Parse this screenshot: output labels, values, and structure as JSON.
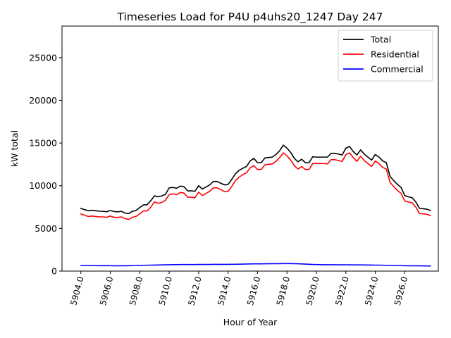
{
  "chart_data": {
    "type": "line",
    "title": "Timeseries Load for P4U p4uhs20_1247  Day 247",
    "xlabel": "Hour of Year",
    "ylabel": "kW total",
    "xlim": [
      5902.72,
      5928.28
    ],
    "ylim": [
      0,
      28700
    ],
    "x_ticks": [
      5904,
      5906,
      5908,
      5910,
      5912,
      5914,
      5916,
      5918,
      5920,
      5922,
      5924,
      5926
    ],
    "x_tick_labels": [
      "5904.0",
      "5906.0",
      "5908.0",
      "5910.0",
      "5912.0",
      "5914.0",
      "5916.0",
      "5918.0",
      "5920.0",
      "5922.0",
      "5924.0",
      "5926.0"
    ],
    "y_ticks": [
      0,
      5000,
      10000,
      15000,
      20000,
      25000
    ],
    "y_tick_labels": [
      "0",
      "5000",
      "10000",
      "15000",
      "20000",
      "25000"
    ],
    "legend_position": "top-right",
    "x_start": 5904.0,
    "x_step": 0.25,
    "series": [
      {
        "name": "Total",
        "color": "#000000",
        "values": [
          7350,
          7200,
          7080,
          7130,
          7080,
          7020,
          7000,
          6950,
          7100,
          6980,
          6940,
          7000,
          6800,
          6750,
          7000,
          7100,
          7450,
          7750,
          7780,
          8250,
          8820,
          8700,
          8800,
          9000,
          9750,
          9800,
          9700,
          9950,
          9900,
          9400,
          9400,
          9350,
          10000,
          9600,
          9850,
          10100,
          10500,
          10500,
          10300,
          10100,
          10150,
          10750,
          11400,
          11800,
          12050,
          12250,
          12900,
          13200,
          12700,
          12700,
          13250,
          13300,
          13350,
          13650,
          14100,
          14750,
          14400,
          13900,
          13200,
          12800,
          13100,
          12700,
          12700,
          13400,
          13350,
          13350,
          13350,
          13350,
          13800,
          13800,
          13700,
          13600,
          14400,
          14600,
          14000,
          13600,
          14200,
          13700,
          13350,
          13000,
          13650,
          13350,
          12900,
          12700,
          11100,
          10600,
          10150,
          9800,
          8850,
          8700,
          8600,
          8100,
          7350,
          7300,
          7250,
          7100
        ]
      },
      {
        "name": "Residential",
        "color": "#ff0000",
        "values": [
          6700,
          6550,
          6400,
          6450,
          6400,
          6350,
          6350,
          6300,
          6450,
          6300,
          6280,
          6350,
          6150,
          6050,
          6300,
          6400,
          6700,
          7050,
          7050,
          7500,
          8100,
          7950,
          8050,
          8300,
          8950,
          9050,
          8950,
          9200,
          9150,
          8650,
          8650,
          8600,
          9250,
          8850,
          9100,
          9350,
          9750,
          9750,
          9550,
          9300,
          9350,
          9900,
          10600,
          11000,
          11300,
          11500,
          12100,
          12350,
          11900,
          11900,
          12450,
          12500,
          12550,
          12850,
          13300,
          13850,
          13500,
          13000,
          12350,
          11950,
          12250,
          11900,
          11900,
          12600,
          12600,
          12600,
          12600,
          12550,
          13050,
          13050,
          12950,
          12850,
          13650,
          13850,
          13300,
          12850,
          13450,
          12950,
          12600,
          12250,
          12900,
          12600,
          12150,
          11950,
          10400,
          9900,
          9450,
          9100,
          8200,
          8100,
          8000,
          7500,
          6750,
          6700,
          6650,
          6500
        ]
      },
      {
        "name": "Commercial",
        "color": "#0000ff",
        "values": [
          650,
          650,
          650,
          640,
          640,
          630,
          630,
          630,
          630,
          620,
          620,
          620,
          620,
          630,
          640,
          650,
          670,
          680,
          690,
          700,
          710,
          720,
          730,
          740,
          750,
          760,
          760,
          770,
          770,
          770,
          770,
          770,
          780,
          780,
          780,
          780,
          790,
          790,
          790,
          790,
          790,
          800,
          800,
          810,
          820,
          830,
          840,
          850,
          850,
          850,
          860,
          860,
          870,
          870,
          870,
          880,
          880,
          880,
          870,
          860,
          840,
          820,
          800,
          780,
          770,
          760,
          750,
          750,
          750,
          750,
          740,
          740,
          740,
          740,
          730,
          730,
          730,
          720,
          720,
          710,
          700,
          700,
          690,
          680,
          670,
          660,
          650,
          640,
          630,
          620,
          620,
          620,
          610,
          610,
          600,
          600
        ]
      }
    ]
  }
}
